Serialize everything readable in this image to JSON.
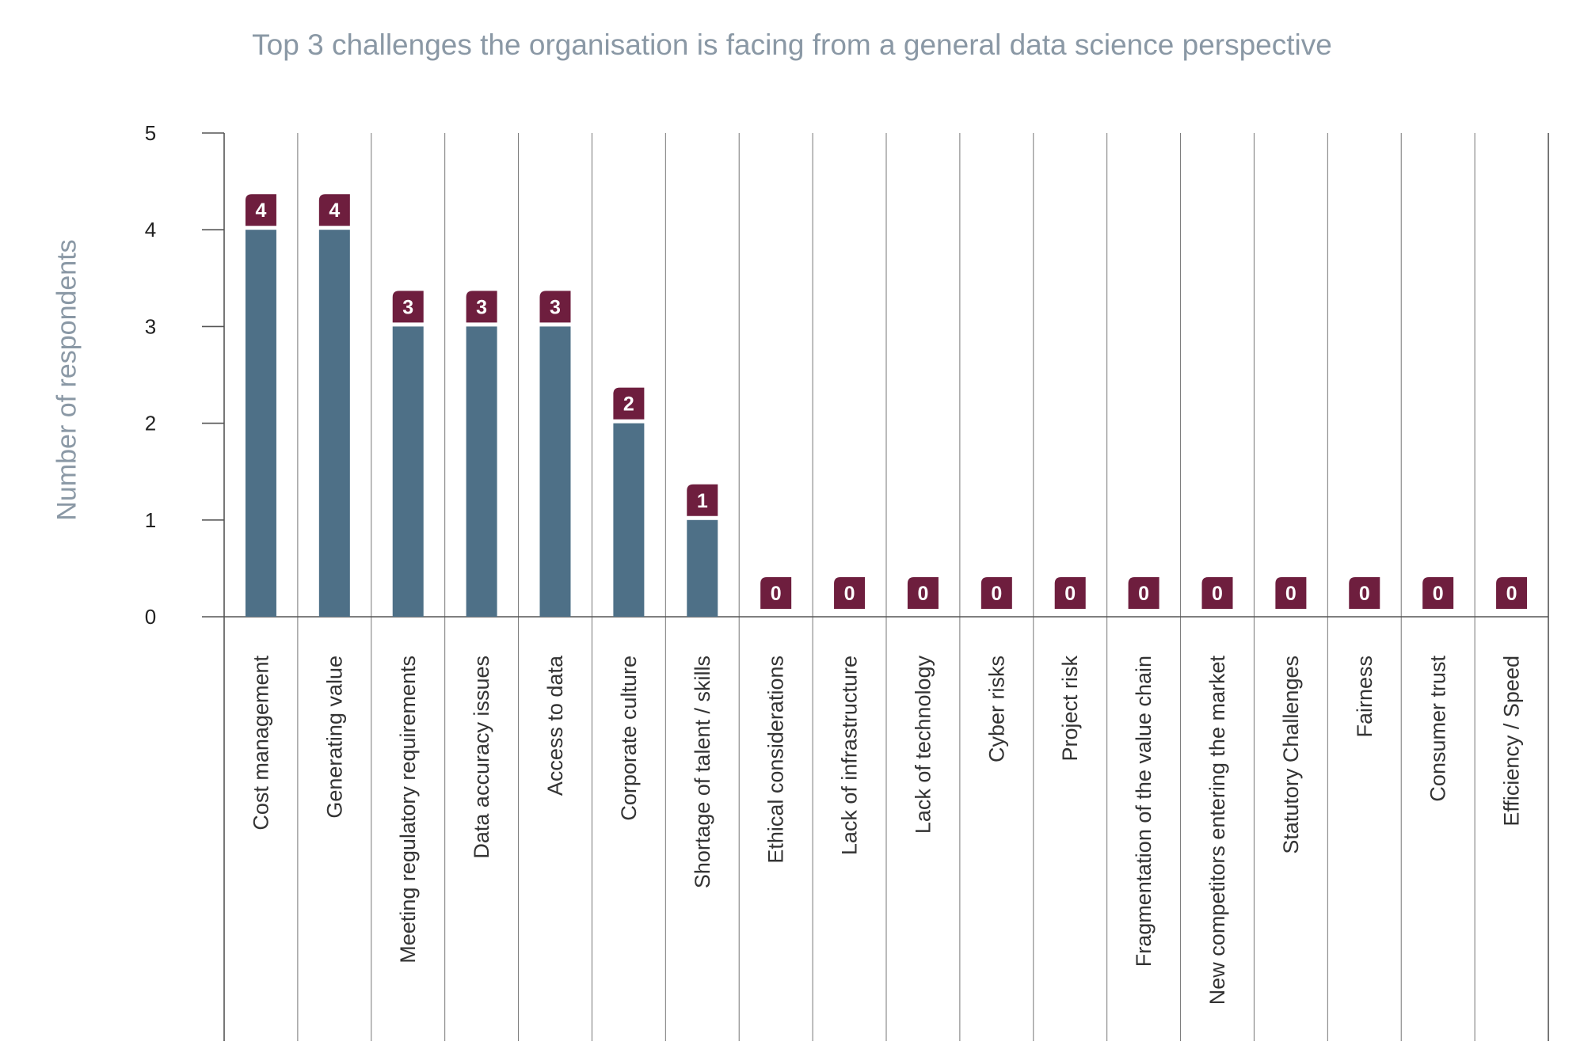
{
  "colors": {
    "bar": "#4e7087",
    "label_bg": "#6e1e3e",
    "label_text": "#ffffff",
    "axis": "#555555",
    "grid": "#777777",
    "title": "#8a98a5"
  },
  "chart_data": {
    "type": "bar",
    "title": "Top 3 challenges the organisation is facing from a general data science perspective",
    "xlabel": "",
    "ylabel": "Number of respondents",
    "ylim": [
      0,
      5
    ],
    "yticks": [
      0,
      1,
      2,
      3,
      4,
      5
    ],
    "grid": "vertical category separators",
    "data_labels": true,
    "categories": [
      "Cost management",
      "Generating value",
      "Meeting regulatory requirements",
      "Data accuracy issues",
      "Access to data",
      "Corporate culture",
      "Shortage of talent / skills",
      "Ethical considerations",
      "Lack of infrastructure",
      "Lack of technology",
      "Cyber risks",
      "Project risk",
      "Fragmentation of the value chain",
      "New competitors entering the market",
      "Statutory Challenges",
      "Fairness",
      "Consumer trust",
      "Efficiency / Speed"
    ],
    "values": [
      4,
      4,
      3,
      3,
      3,
      2,
      1,
      0,
      0,
      0,
      0,
      0,
      0,
      0,
      0,
      0,
      0,
      0
    ]
  }
}
